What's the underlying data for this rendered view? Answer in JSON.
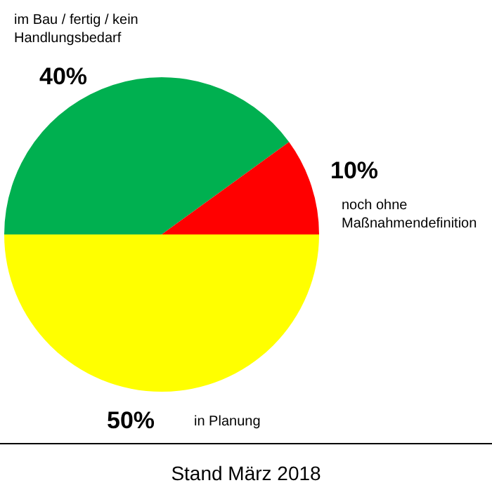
{
  "chart_data": {
    "type": "pie",
    "categories": [
      "im Bau / fertig / kein\nHandlungsbedarf",
      "noch ohne\nMaßnahmendefinition",
      "in Planung"
    ],
    "values": [
      40,
      10,
      50
    ],
    "colors": [
      "#00b050",
      "#ff0000",
      "#ffff00"
    ],
    "value_labels": [
      "40%",
      "10%",
      "50%"
    ],
    "annotations": [
      "Stand März 2018"
    ]
  }
}
